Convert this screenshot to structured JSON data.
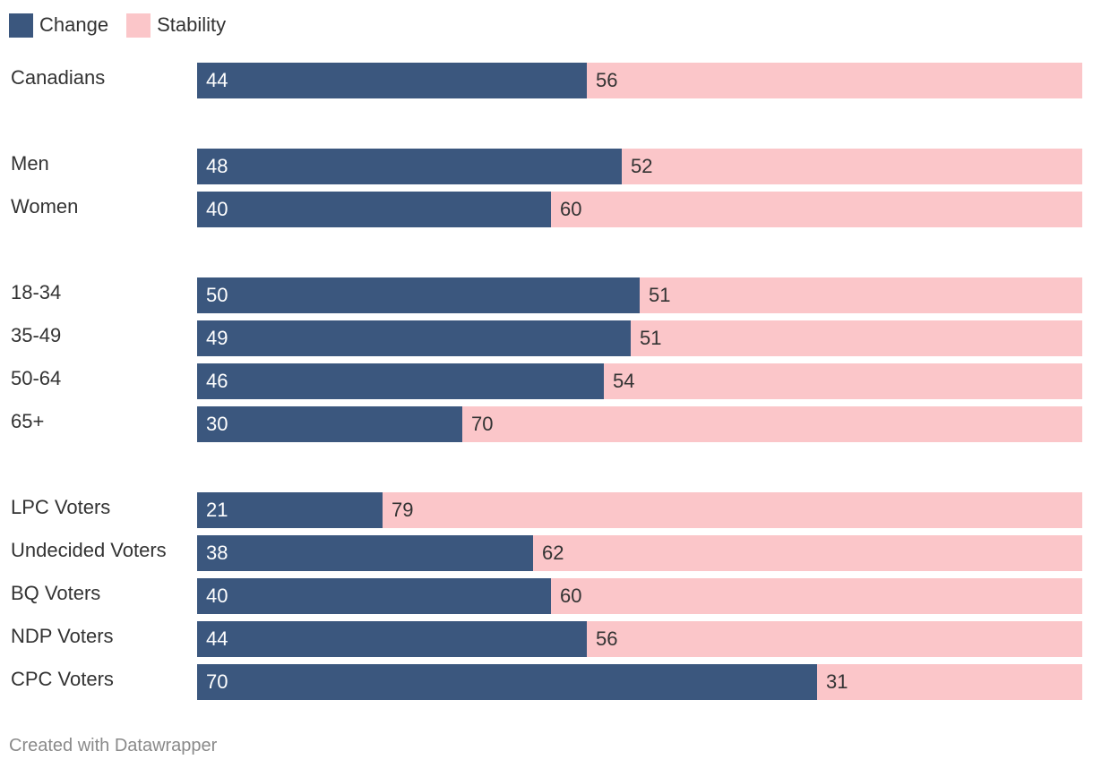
{
  "colors": {
    "change": "#3b577e",
    "stability": "#fbc6c9",
    "change_text": "#ffffff",
    "stability_text": "#333333"
  },
  "legend": {
    "change": "Change",
    "stability": "Stability"
  },
  "chart_data": {
    "type": "bar",
    "orientation": "horizontal",
    "stacked": true,
    "categories": [
      "Canadians",
      "Men",
      "Women",
      "18-34",
      "35-49",
      "50-64",
      "65+",
      "LPC Voters",
      "Undecided Voters",
      "BQ Voters",
      "NDP Voters",
      "CPC Voters"
    ],
    "groups": [
      [
        "Canadians"
      ],
      [
        "Men",
        "Women"
      ],
      [
        "18-34",
        "35-49",
        "50-64",
        "65+"
      ],
      [
        "LPC Voters",
        "Undecided Voters",
        "BQ Voters",
        "NDP Voters",
        "CPC Voters"
      ]
    ],
    "series": [
      {
        "name": "Change",
        "values": [
          44,
          48,
          40,
          50,
          49,
          46,
          30,
          21,
          38,
          40,
          44,
          70
        ]
      },
      {
        "name": "Stability",
        "values": [
          56,
          52,
          60,
          51,
          51,
          54,
          70,
          79,
          62,
          60,
          56,
          31
        ]
      }
    ],
    "xlim": [
      0,
      100
    ],
    "title": "",
    "xlabel": "",
    "ylabel": ""
  },
  "footer": "Created with Datawrapper"
}
